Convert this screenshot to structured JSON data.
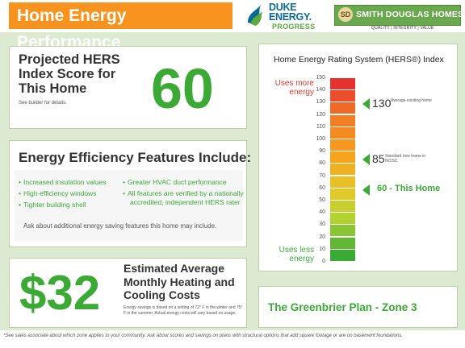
{
  "header": {
    "title": "Home Energy Performance",
    "duke_name": "DUKE ENERGY.",
    "duke_sub": "PROGRESS",
    "sd_initials": "SD",
    "sd_name": "SMITH DOUGLAS HOMES",
    "sd_tagline": "QUALITY | INTEGRITY | VALUE"
  },
  "score_panel": {
    "title": "Projected HERS Index Score for This Home",
    "sub": "See builder for details.",
    "score": "60"
  },
  "features_panel": {
    "title": "Energy Efficiency Features Include:",
    "left": [
      "Increased insulation values",
      "High-efficiency windows",
      "Tighter building shell"
    ],
    "right": [
      "Greater HVAC duct performance",
      "All features are verified by a nationally accredited, independent HERS rater"
    ],
    "ask": "Ask about additional energy saving features this home may include."
  },
  "cost_panel": {
    "amount": "$32",
    "title": "Estimated Average Monthly Heating and Cooling Costs",
    "note": "Energy savings is based on a setting of 72° F in the winter and 75° F in the summer. Actual energy costs will vary based on usage."
  },
  "hers_panel": {
    "title": "Home Energy Rating System (HERS®) Index",
    "use_more": "Uses more energy",
    "use_less": "Uses less energy",
    "ticks": [
      "150",
      "140",
      "130",
      "120",
      "110",
      "100",
      "90",
      "80",
      "70",
      "60",
      "50",
      "40",
      "30",
      "20",
      "10",
      "0"
    ],
    "markers": [
      {
        "value": 130,
        "number": "130",
        "label": "Average existing home"
      },
      {
        "value": 85,
        "number": "85",
        "label": "Standard new home in NC/SC"
      },
      {
        "value": 60,
        "label": "60 - This Home"
      }
    ],
    "colors": {
      "top": "#e5322d",
      "middle": "#f7a21b",
      "upper_green": "#b5d334",
      "bottom": "#3aaa35"
    }
  },
  "plan": "The Greenbrier Plan - Zone 3",
  "footnote": "*See sales associate about which zone applies to your community.  Ask about scores and savings on plans with structural options that add square footage or are on basement foundations."
}
